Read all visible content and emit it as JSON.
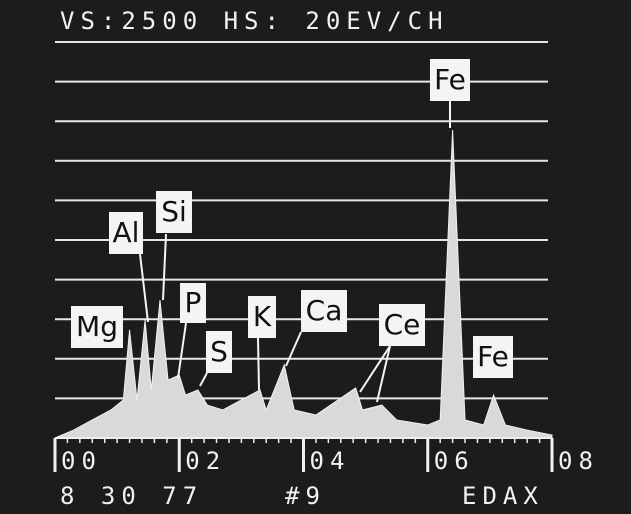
{
  "chart_data": {
    "type": "area",
    "title": "VS:2500   HS: 20EV/CH",
    "x": [
      0,
      0.3,
      0.6,
      0.9,
      1.1,
      1.2,
      1.32,
      1.45,
      1.55,
      1.69,
      1.82,
      2.0,
      2.1,
      2.3,
      2.45,
      2.7,
      3.3,
      3.4,
      3.69,
      3.85,
      4.2,
      4.84,
      4.95,
      5.26,
      5.5,
      6.0,
      6.2,
      6.4,
      6.6,
      6.9,
      7.06,
      7.25,
      7.6,
      8.0
    ],
    "values": [
      0,
      50,
      114,
      177,
      240,
      682,
      240,
      745,
      303,
      871,
      366,
      397,
      271,
      303,
      208,
      177,
      303,
      177,
      461,
      177,
      145,
      316,
      177,
      208,
      114,
      82,
      114,
      1944,
      114,
      82,
      271,
      82,
      50,
      19
    ],
    "color": "#d9d9d9",
    "xlim": [
      0,
      8
    ],
    "xticks": [
      {
        "value": 0,
        "label": "00"
      },
      {
        "value": 2,
        "label": "02"
      },
      {
        "value": 4,
        "label": "04"
      },
      {
        "value": 6,
        "label": "06"
      },
      {
        "value": 8,
        "label": "08"
      }
    ],
    "ylim": [
      0,
      2500
    ],
    "yticks": [
      0,
      250,
      500,
      750,
      1000,
      1250,
      1500,
      1750,
      2000,
      2250,
      2500
    ],
    "grid": true,
    "peak_labels": [
      "Mg",
      "Al",
      "Si",
      "P",
      "S",
      "K",
      "Ca",
      "Ce",
      "Fe",
      "Fe"
    ],
    "footer": [
      "8 30 77",
      "#9",
      "EDAX"
    ]
  }
}
